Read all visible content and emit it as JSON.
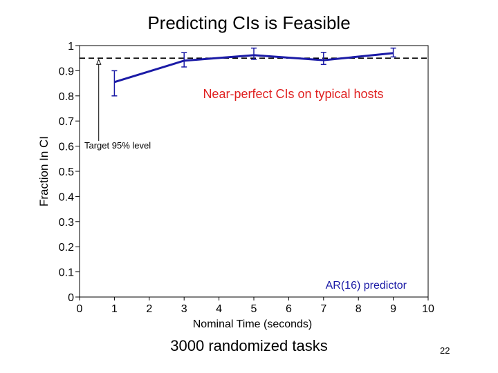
{
  "slide": {
    "title": "Predicting CIs is Feasible",
    "subtitle": "3000 randomized tasks",
    "page_number": "22"
  },
  "chart_data": {
    "type": "line",
    "xlabel": "Nominal Time (seconds)",
    "ylabel": "Fraction In CI",
    "xlim": [
      0,
      10
    ],
    "ylim": [
      0,
      1
    ],
    "x_ticks": [
      "0",
      "1",
      "2",
      "3",
      "4",
      "5",
      "6",
      "7",
      "8",
      "9",
      "10"
    ],
    "y_ticks": [
      "0",
      "0.1",
      "0.2",
      "0.3",
      "0.4",
      "0.5",
      "0.6",
      "0.7",
      "0.8",
      "0.9",
      "1"
    ],
    "grid": false,
    "series": [
      {
        "name": "AR(16) predictor",
        "color": "#1a1aa6",
        "x": [
          1,
          3,
          5,
          7,
          9
        ],
        "y": [
          0.855,
          0.94,
          0.962,
          0.942,
          0.97
        ],
        "err_low": [
          0.8,
          0.915,
          0.945,
          0.925,
          0.955
        ],
        "err_high": [
          0.9,
          0.972,
          0.99,
          0.973,
          0.99
        ]
      }
    ],
    "reference_line": {
      "y": 0.95,
      "style": "dashed",
      "color": "#000000"
    },
    "annotations": [
      {
        "text": "Near-perfect CIs on typical hosts",
        "color": "#e02020"
      },
      {
        "text": "Target 95% level",
        "color": "#000000",
        "arrow_to": {
          "x": 0.55,
          "y": 0.95
        }
      },
      {
        "text": "AR(16) predictor",
        "color": "#1a1aa6"
      }
    ]
  }
}
